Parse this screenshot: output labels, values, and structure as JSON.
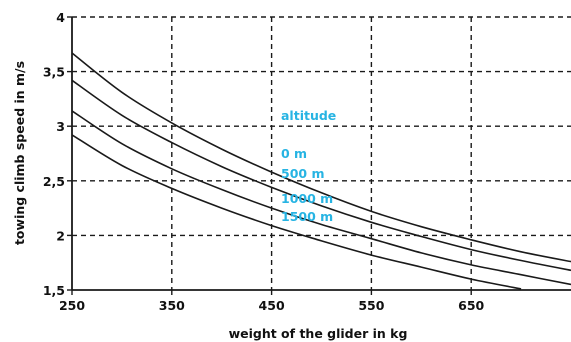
{
  "chart_data": {
    "type": "line",
    "xlabel": "weight of the glider in kg",
    "ylabel": "towing climb speed in m/s",
    "xlim": [
      250,
      750
    ],
    "ylim": [
      1.5,
      4
    ],
    "x_ticks": [
      "250",
      "350",
      "450",
      "550",
      "650"
    ],
    "y_ticks": [
      "1,5",
      "2",
      "2,5",
      "3",
      "3,5",
      "4"
    ],
    "grid": "dashed",
    "legend_title": "altitude",
    "series": [
      {
        "name": "0 m",
        "x": [
          250,
          300,
          350,
          400,
          450,
          500,
          550,
          600,
          650,
          700,
          750
        ],
        "y": [
          3.67,
          3.31,
          3.03,
          2.79,
          2.58,
          2.39,
          2.22,
          2.08,
          1.96,
          1.85,
          1.76
        ]
      },
      {
        "name": "500 m",
        "x": [
          250,
          300,
          350,
          400,
          450,
          500,
          550,
          600,
          650,
          700,
          750
        ],
        "y": [
          3.42,
          3.1,
          2.85,
          2.63,
          2.44,
          2.27,
          2.12,
          1.99,
          1.87,
          1.77,
          1.68
        ]
      },
      {
        "name": "1000 m",
        "x": [
          250,
          300,
          350,
          400,
          450,
          500,
          550,
          600,
          650,
          700,
          750
        ],
        "y": [
          3.14,
          2.84,
          2.61,
          2.42,
          2.25,
          2.1,
          1.97,
          1.84,
          1.73,
          1.64,
          1.55
        ]
      },
      {
        "name": "1500 m",
        "x": [
          250,
          300,
          350,
          400,
          450,
          500,
          550,
          600,
          650,
          700
        ],
        "y": [
          2.92,
          2.64,
          2.43,
          2.25,
          2.09,
          1.95,
          1.82,
          1.71,
          1.6,
          1.51
        ]
      }
    ],
    "colors": {
      "curve": "#1a1a1a",
      "grid": "#1a1a1a",
      "annotation": "#27b4e3",
      "text": "#111111"
    }
  }
}
